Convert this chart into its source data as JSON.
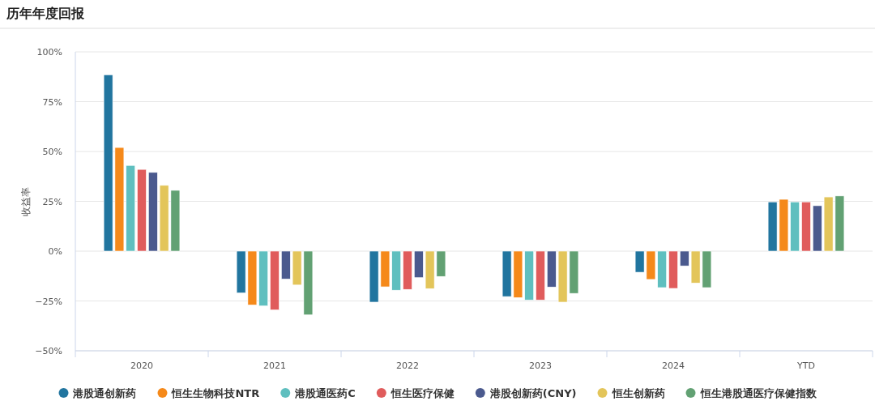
{
  "chart_data": {
    "type": "bar",
    "title": "历年年度回报",
    "ylabel": "收益率",
    "categories": [
      "2020",
      "2021",
      "2022",
      "2023",
      "2024",
      "YTD"
    ],
    "series": [
      {
        "name": "港股通创新药",
        "color": "#21759f",
        "values": [
          88.5,
          -21,
          -25.6,
          -22.8,
          -10.6,
          24.7
        ]
      },
      {
        "name": "恒生生物科技NTR",
        "color": "#f5891a",
        "values": [
          52,
          -27,
          -17.9,
          -23.3,
          -14.2,
          26
        ]
      },
      {
        "name": "港股通医药C",
        "color": "#5fbfbf",
        "values": [
          43,
          -27.5,
          -19.6,
          -24.5,
          -18.3,
          24.7
        ]
      },
      {
        "name": "恒生医疗保健",
        "color": "#e05c5c",
        "values": [
          41,
          -29.5,
          -19.2,
          -24.5,
          -18.7,
          24.7
        ]
      },
      {
        "name": "港股创新药(CNY)",
        "color": "#4b5a8e",
        "values": [
          39.5,
          -14,
          -13.3,
          -18,
          -7.4,
          22.8
        ]
      },
      {
        "name": "恒生创新药",
        "color": "#e3c55a",
        "values": [
          33,
          -17,
          -18.8,
          -25.6,
          -16,
          27.2
        ]
      },
      {
        "name": "恒生港股通医疗保健指数",
        "color": "#62a173",
        "values": [
          30.5,
          -32,
          -12.7,
          -21.2,
          -18.3,
          27.7
        ]
      }
    ],
    "ylim": [
      -50,
      100
    ],
    "yticks": [
      {
        "value": -50,
        "label": "−50%"
      },
      {
        "value": -25,
        "label": "−25%"
      },
      {
        "value": 0,
        "label": "0%"
      },
      {
        "value": 25,
        "label": "25%"
      },
      {
        "value": 50,
        "label": "50%"
      },
      {
        "value": 75,
        "label": "75%"
      },
      {
        "value": 100,
        "label": "100%"
      }
    ],
    "grid": "y",
    "legend": "bottom"
  }
}
